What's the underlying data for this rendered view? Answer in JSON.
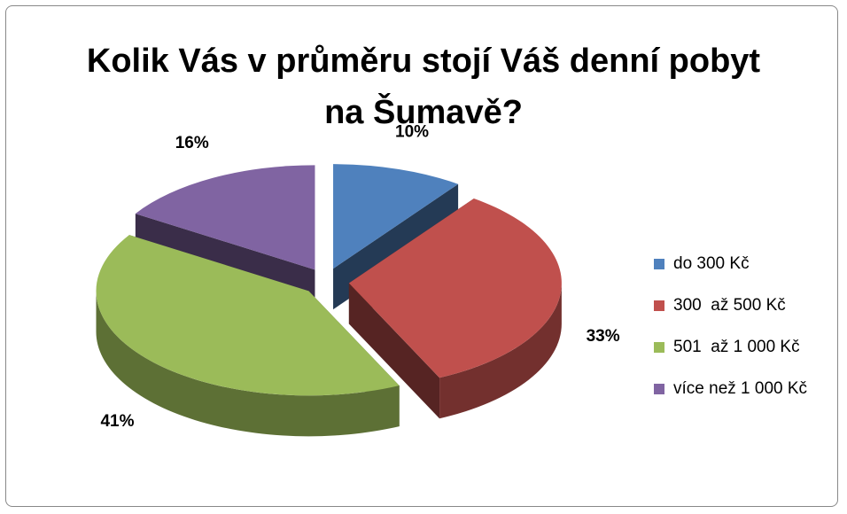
{
  "chart_data": {
    "type": "pie",
    "title": "Kolik Vás v průměru stojí Váš denní pobyt na Šumavě?",
    "categories": [
      "do 300 Kč",
      "300  až 500 Kč",
      "501  až 1 000 Kč",
      "více než 1 000 Kč"
    ],
    "values": [
      10,
      33,
      41,
      16
    ],
    "value_labels": [
      "10%",
      "33%",
      "41%",
      "16%"
    ],
    "colors": [
      "#4f81bd",
      "#c0504d",
      "#9bbb59",
      "#8064a2"
    ],
    "legend": "right"
  }
}
